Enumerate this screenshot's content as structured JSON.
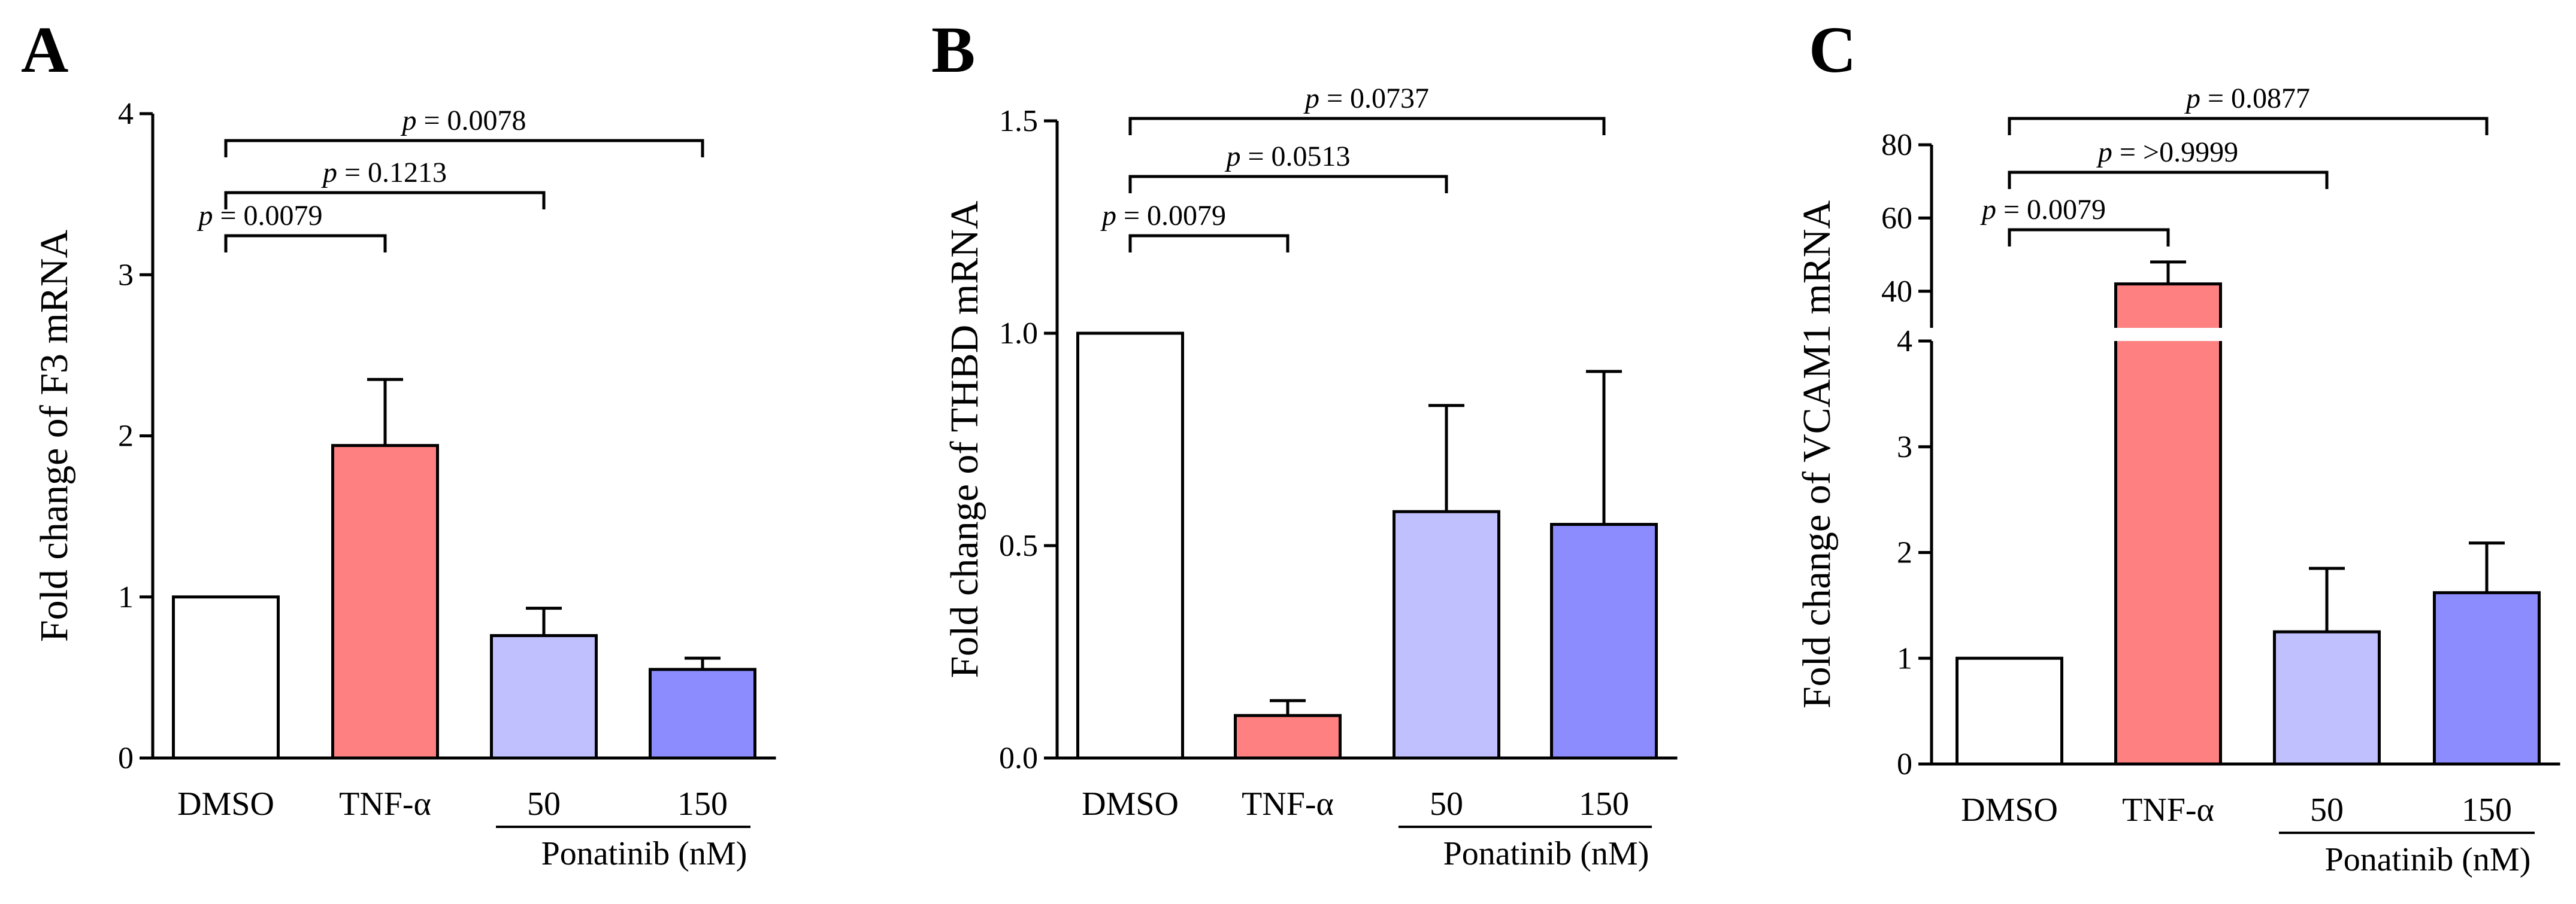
{
  "chart_data": [
    {
      "panel": "A",
      "type": "bar",
      "ylabel": "Fold change of F3 mRNA",
      "ylim": [
        0,
        4
      ],
      "yticks": [
        0,
        1,
        2,
        3,
        4
      ],
      "ytick_labels": [
        "0",
        "1",
        "2",
        "3",
        "4"
      ],
      "categories": [
        "DMSO",
        "TNF-α",
        "50",
        "150"
      ],
      "values": [
        1.0,
        1.94,
        0.76,
        0.55
      ],
      "errors": [
        0,
        0.41,
        0.17,
        0.07
      ],
      "colors": [
        "#ffffff",
        "#ff8080",
        "#c0c0ff",
        "#8c8cff"
      ],
      "group_label": "Ponatinib (nM)",
      "comparisons": [
        {
          "from": 0,
          "to": 1,
          "label": "p = 0.0079"
        },
        {
          "from": 0,
          "to": 2,
          "label": "p = 0.1213"
        },
        {
          "from": 0,
          "to": 3,
          "label": "p = 0.0078"
        }
      ]
    },
    {
      "panel": "B",
      "type": "bar",
      "ylabel": "Fold change of THBD mRNA",
      "ylim": [
        0,
        1.5
      ],
      "yticks": [
        0,
        0.5,
        1.0,
        1.5
      ],
      "ytick_labels": [
        "0.0",
        "0.5",
        "1.0",
        "1.5"
      ],
      "categories": [
        "DMSO",
        "TNF-α",
        "50",
        "150"
      ],
      "values": [
        1.0,
        0.1,
        0.58,
        0.55
      ],
      "errors": [
        0,
        0.035,
        0.25,
        0.36
      ],
      "colors": [
        "#ffffff",
        "#ff8080",
        "#c0c0ff",
        "#8c8cff"
      ],
      "group_label": "Ponatinib (nM)",
      "comparisons": [
        {
          "from": 0,
          "to": 1,
          "label": "p = 0.0079"
        },
        {
          "from": 0,
          "to": 2,
          "label": "p = 0.0513"
        },
        {
          "from": 0,
          "to": 3,
          "label": "p = 0.0737"
        }
      ]
    },
    {
      "panel": "C",
      "type": "bar",
      "ylabel": "Fold change of VCAM1 mRNA",
      "ylim": [
        0,
        80
      ],
      "axis_break": {
        "lower": [
          0,
          4
        ],
        "upper": [
          30,
          80
        ]
      },
      "yticks_lower": [
        0,
        1,
        2,
        3,
        4
      ],
      "yticks_upper": [
        40,
        60,
        80
      ],
      "categories": [
        "DMSO",
        "TNF-α",
        "50",
        "150"
      ],
      "values": [
        1.0,
        42.0,
        1.25,
        1.62
      ],
      "errors": [
        0,
        6.0,
        0.6,
        0.47
      ],
      "colors": [
        "#ffffff",
        "#ff8080",
        "#c0c0ff",
        "#8c8cff"
      ],
      "group_label": "Ponatinib (nM)",
      "comparisons": [
        {
          "from": 0,
          "to": 1,
          "label": "p = 0.0079"
        },
        {
          "from": 0,
          "to": 2,
          "label": "p = >0.9999"
        },
        {
          "from": 0,
          "to": 3,
          "label": "p = 0.0877"
        }
      ]
    }
  ]
}
